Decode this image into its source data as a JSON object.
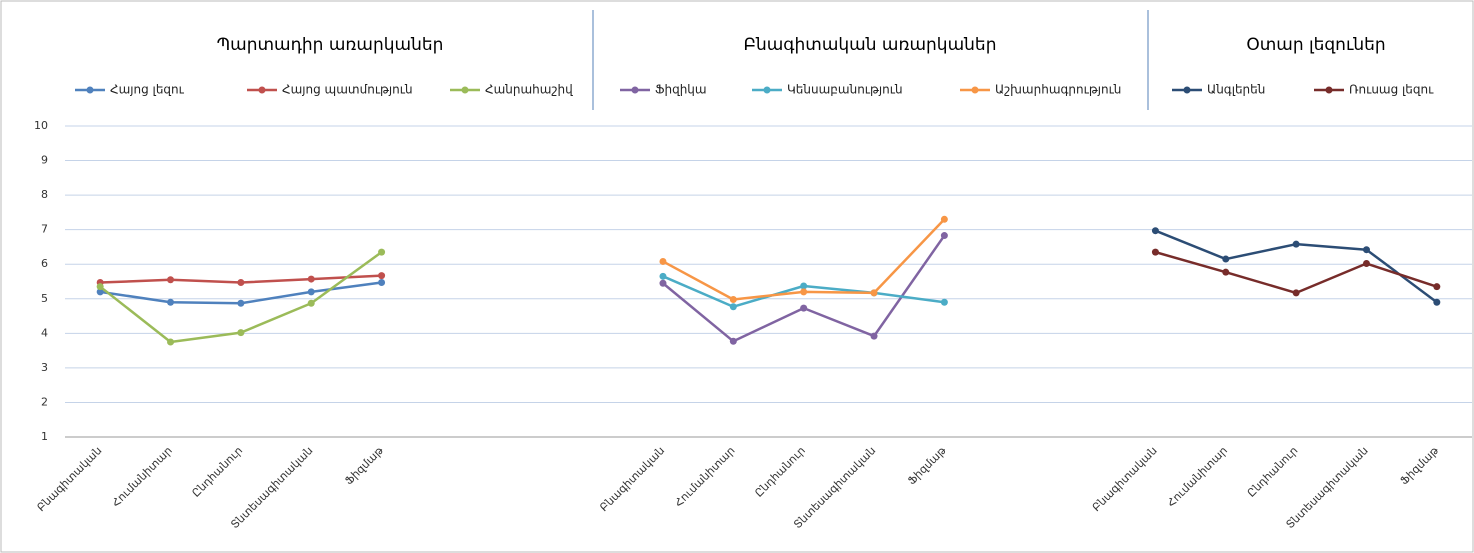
{
  "chart_data": {
    "type": "line",
    "group_titles": [
      "Պարտադիր առարկաներ",
      "Բնագիտական առարկաներ",
      "Օտար լեզուներ"
    ],
    "categories": [
      "Բնագիտական",
      "Հումանիտար",
      "Ընդհանուր",
      "Տնտեսագիտական",
      "Ֆիզմաթ",
      null,
      null,
      null,
      "Բնագիտական",
      "Հումանիտար",
      "Ընդհանուր",
      "Տնտեսագիտական",
      "Ֆիզմաթ",
      null,
      null,
      "Բնագիտական",
      "Հումանիտար",
      "Ընդհանուր",
      "Տնտեսագիտական",
      "Ֆիզմաթ"
    ],
    "series": [
      {
        "name": "Հայոց լեզու",
        "color": "#4f81bd",
        "values": [
          5.2,
          4.9,
          4.87,
          5.2,
          5.47,
          null,
          null,
          null,
          null,
          null,
          null,
          null,
          null,
          null,
          null,
          null,
          null,
          null,
          null,
          null
        ]
      },
      {
        "name": "Հայոց պատմություն",
        "color": "#c0504d",
        "values": [
          5.47,
          5.55,
          5.47,
          5.57,
          5.67,
          null,
          null,
          null,
          null,
          null,
          null,
          null,
          null,
          null,
          null,
          null,
          null,
          null,
          null,
          null
        ]
      },
      {
        "name": "Հանրահաշիվ",
        "color": "#9bbb59",
        "values": [
          5.35,
          3.75,
          4.02,
          4.87,
          6.35,
          null,
          null,
          null,
          null,
          null,
          null,
          null,
          null,
          null,
          null,
          null,
          null,
          null,
          null,
          null
        ]
      },
      {
        "name": "Ֆիզիկա",
        "color": "#8064a2",
        "values": [
          null,
          null,
          null,
          null,
          null,
          null,
          null,
          null,
          5.45,
          3.77,
          4.73,
          3.92,
          6.83,
          null,
          null,
          null,
          null,
          null,
          null,
          null
        ]
      },
      {
        "name": "Կենսաբանություն",
        "color": "#4bacc6",
        "values": [
          null,
          null,
          null,
          null,
          null,
          null,
          null,
          null,
          5.65,
          4.77,
          5.37,
          5.17,
          4.9,
          null,
          null,
          null,
          null,
          null,
          null,
          null
        ]
      },
      {
        "name": "Աշխարհագրություն",
        "color": "#f79646",
        "values": [
          null,
          null,
          null,
          null,
          null,
          null,
          null,
          null,
          6.08,
          4.98,
          5.2,
          5.17,
          7.3,
          null,
          null,
          null,
          null,
          null,
          null,
          null
        ]
      },
      {
        "name": "Անգլերեն",
        "color": "#2c4d75",
        "values": [
          null,
          null,
          null,
          null,
          null,
          null,
          null,
          null,
          null,
          null,
          null,
          null,
          null,
          null,
          null,
          6.97,
          6.15,
          6.58,
          6.42,
          4.9
        ]
      },
      {
        "name": "Ռուսաց լեզու",
        "color": "#772c2a",
        "values": [
          null,
          null,
          null,
          null,
          null,
          null,
          null,
          null,
          null,
          null,
          null,
          null,
          null,
          null,
          null,
          6.35,
          5.77,
          5.17,
          6.02,
          5.35
        ]
      }
    ],
    "ylim": [
      1,
      10
    ],
    "yticks": [
      1,
      2,
      3,
      4,
      5,
      6,
      7,
      8,
      9,
      10
    ],
    "grid": true
  }
}
